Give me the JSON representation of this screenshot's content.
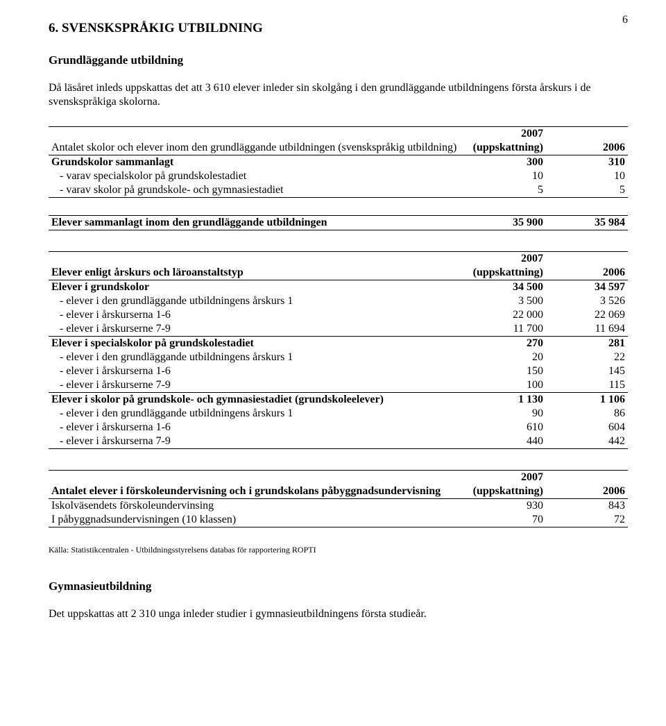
{
  "page_number": "6",
  "section_title": "6. SVENSKSPRÅKIG UTBILDNING",
  "sub_heading_1": "Grundläggande utbildning",
  "intro_paragraph": "Då läsåret inleds uppskattas det att 3 610 elever inleder sin skolgång i den grundläggande utbildningens första årskurs i de svenskspråkiga skolorna.",
  "t1": {
    "header_label": "Antalet skolor och elever inom den grundläggande utbildningen (svenskspråkig utbildning)",
    "col_2007_top": "2007",
    "col_2007_sub": "(uppskattning)",
    "col_2006": "2006",
    "rows": [
      {
        "label": "Grundskolor sammanlagt",
        "v1": "300",
        "v2": "310",
        "bold": true
      },
      {
        "label": "- varav specialskolor på grundskolestadiet",
        "v1": "10",
        "v2": "10",
        "indent": true
      },
      {
        "label": "- varav skolor på grundskole- och gymnasiestadiet",
        "v1": "5",
        "v2": "5",
        "indent": true
      }
    ]
  },
  "total_row": {
    "label": "Elever sammanlagt inom den grundläggande utbildningen",
    "v1": "35 900",
    "v2": "35 984"
  },
  "t2": {
    "header_label": "Elever enligt årskurs och läroanstaltstyp",
    "col_2007_top": "2007",
    "col_2007_sub": "(uppskattning)",
    "col_2006": "2006",
    "groups": [
      {
        "header": {
          "label": "Elever i grundskolor",
          "v1": "34 500",
          "v2": "34 597"
        },
        "rows": [
          {
            "label": "- elever i den grundläggande utbildningens årskurs 1",
            "v1": "3 500",
            "v2": "3 526"
          },
          {
            "label": "- elever i årskurserna 1-6",
            "v1": "22 000",
            "v2": "22 069"
          },
          {
            "label": "- elever i årskurserne 7-9",
            "v1": "11 700",
            "v2": "11 694"
          }
        ]
      },
      {
        "header": {
          "label": "Elever i specialskolor på grundskolestadiet",
          "v1": "270",
          "v2": "281"
        },
        "rows": [
          {
            "label": "- elever i den grundläggande utbildningens årskurs 1",
            "v1": "20",
            "v2": "22"
          },
          {
            "label": "- elever i årskurserna 1-6",
            "v1": "150",
            "v2": "145"
          },
          {
            "label": "- elever i årskurserne 7-9",
            "v1": "100",
            "v2": "115"
          }
        ]
      },
      {
        "header": {
          "label": "Elever i skolor på grundskole- och gymnasiestadiet (grundskoleelever)",
          "v1": "1 130",
          "v2": "1 106"
        },
        "rows": [
          {
            "label": "- elever i den grundläggande utbildningens årskurs 1",
            "v1": "90",
            "v2": "86"
          },
          {
            "label": "- elever i årskurserna 1-6",
            "v1": "610",
            "v2": "604"
          },
          {
            "label": "- elever i årskurserna 7-9",
            "v1": "440",
            "v2": "442"
          }
        ]
      }
    ]
  },
  "t3": {
    "header_label": "Antalet elever i förskoleundervisning och i grundskolans påbyggnadsundervisning",
    "col_2007_top": "2007",
    "col_2007_sub": "(uppskattning)",
    "col_2006": "2006",
    "rows": [
      {
        "label": "Iskolväsendets förskoleundervinsing",
        "v1": "930",
        "v2": "843"
      },
      {
        "label": "I påbyggnadsundervisningen (10 klassen)",
        "v1": "70",
        "v2": "72"
      }
    ]
  },
  "source_note": "Källa: Statistikcentralen - Utbildningsstyrelsens databas för rapportering ROPTI",
  "sub_heading_2": "Gymnasieutbildning",
  "closing_paragraph": "Det uppskattas att 2 310 unga inleder studier i gymnasieutbildningens första studieår."
}
